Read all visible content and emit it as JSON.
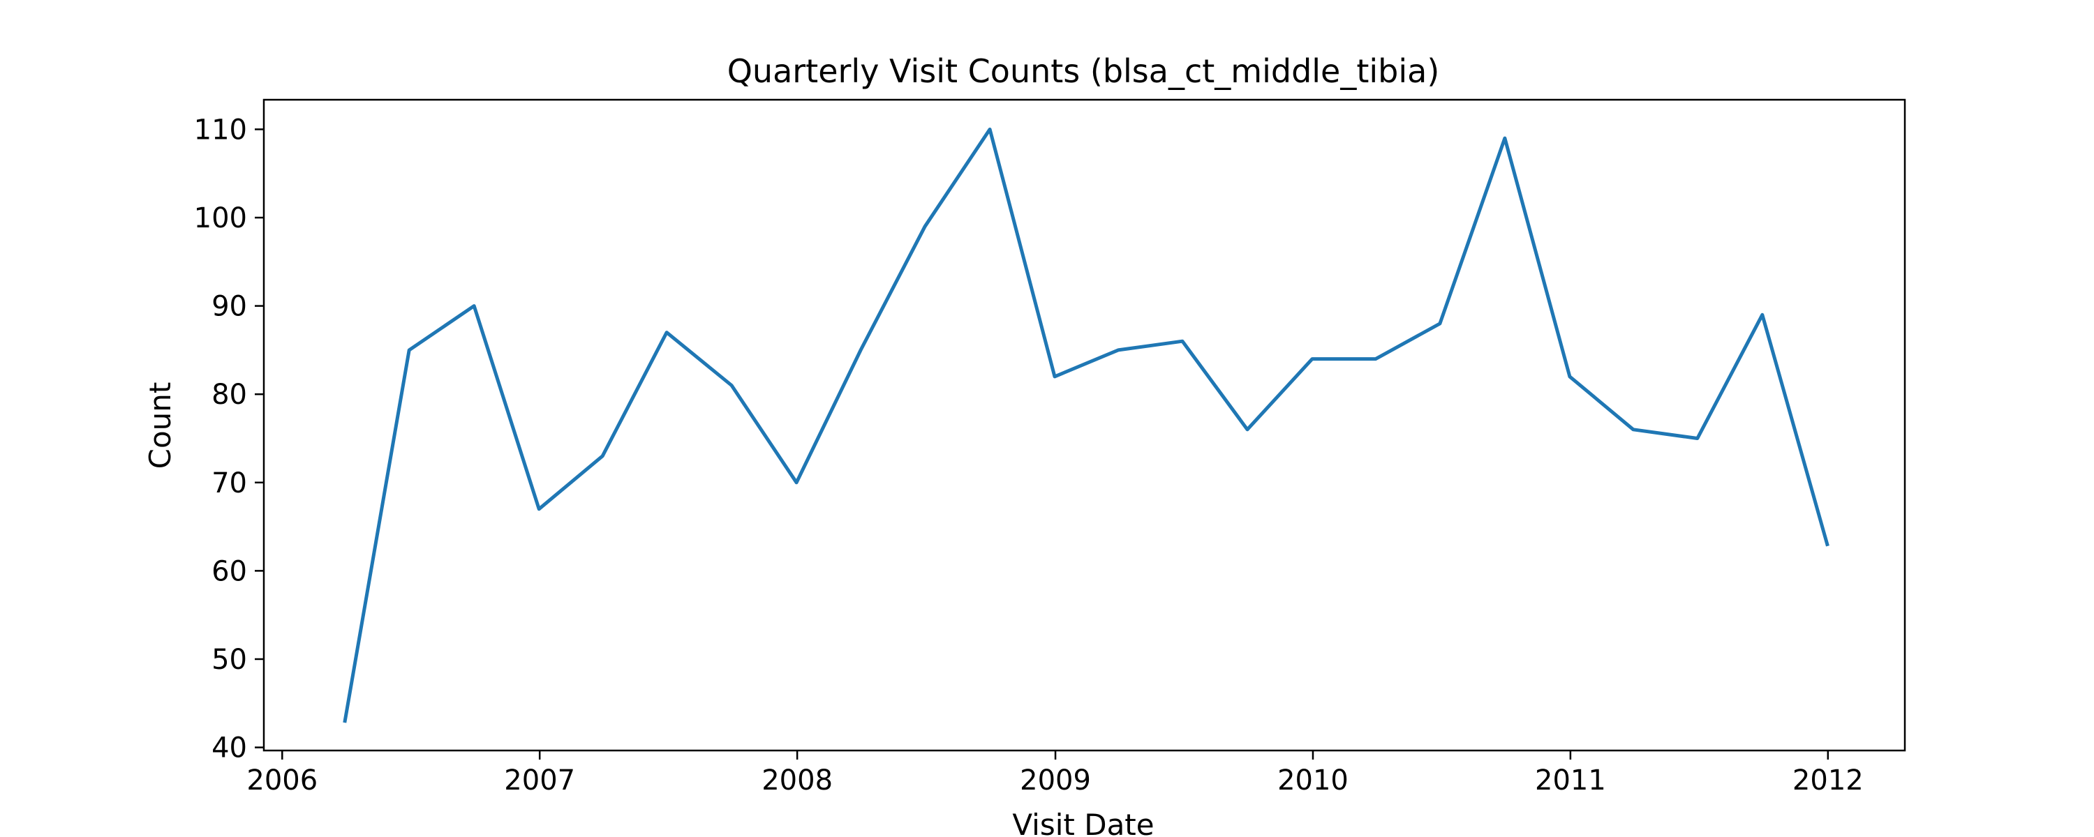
{
  "chart_data": {
    "type": "line",
    "title": "Quarterly Visit Counts (blsa_ct_middle_tibia)",
    "xlabel": "Visit Date",
    "ylabel": "Count",
    "grid": false,
    "xlim": [
      "2005-12-06",
      "2012-04-19"
    ],
    "ylim": [
      39.65,
      113.35
    ],
    "x_ticks": [
      {
        "date": "2006-01-01",
        "label": "2006"
      },
      {
        "date": "2007-01-01",
        "label": "2007"
      },
      {
        "date": "2008-01-01",
        "label": "2008"
      },
      {
        "date": "2009-01-01",
        "label": "2009"
      },
      {
        "date": "2010-01-01",
        "label": "2010"
      },
      {
        "date": "2011-01-01",
        "label": "2011"
      },
      {
        "date": "2012-01-01",
        "label": "2012"
      }
    ],
    "y_ticks": [
      40,
      50,
      60,
      70,
      80,
      90,
      100,
      110
    ],
    "series": [
      {
        "color": "#1f77b4",
        "x": [
          "2006-03-31",
          "2006-06-30",
          "2006-09-30",
          "2006-12-31",
          "2007-03-31",
          "2007-06-30",
          "2007-09-30",
          "2007-12-31",
          "2008-03-31",
          "2008-06-30",
          "2008-09-30",
          "2008-12-31",
          "2009-03-31",
          "2009-06-30",
          "2009-09-30",
          "2009-12-31",
          "2010-03-31",
          "2010-06-30",
          "2010-09-30",
          "2010-12-31",
          "2011-03-31",
          "2011-06-30",
          "2011-09-30",
          "2011-12-31"
        ],
        "values": [
          43,
          85,
          90,
          67,
          73,
          87,
          81,
          70,
          85,
          99,
          110,
          82,
          85,
          86,
          76,
          84,
          84,
          88,
          109,
          82,
          76,
          75,
          89,
          63
        ]
      }
    ]
  }
}
